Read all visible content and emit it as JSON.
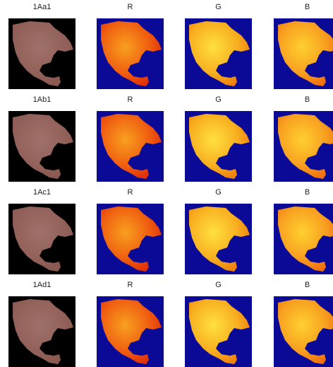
{
  "rows": [
    [
      "1Aa1",
      "R",
      "G",
      "B"
    ],
    [
      "1Ab1",
      "R",
      "G",
      "B"
    ],
    [
      "1Ac1",
      "R",
      "G",
      "B"
    ],
    [
      "1Ad1",
      "R",
      "G",
      "B"
    ]
  ]
}
